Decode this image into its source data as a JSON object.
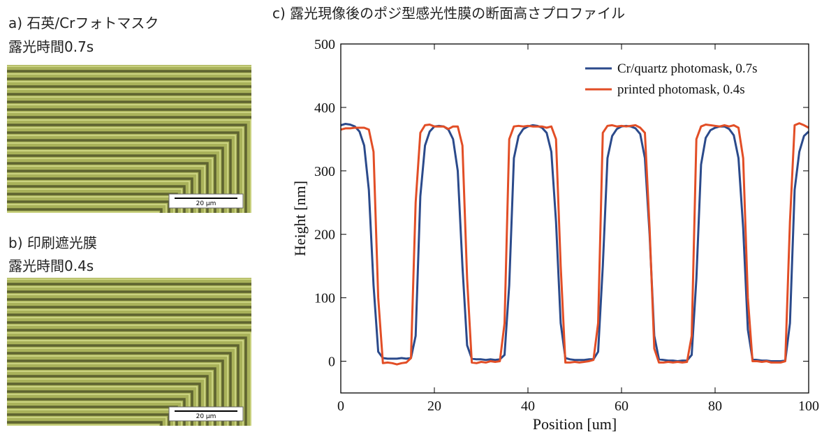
{
  "panels": [
    {
      "label": "a) 石英/Crフォトマスク",
      "caption": "露光時間0.7s",
      "scale_bar": "20 µm"
    },
    {
      "label": "b) 印刷遮光膜",
      "caption": "露光時間0.4s",
      "scale_bar": "20 µm"
    }
  ],
  "chart_data": {
    "type": "line",
    "title": "c) 露光現像後のポジ型感光性膜の断面高さプロファイル",
    "xlabel": "Position [um]",
    "ylabel": "Height [nm]",
    "xlim": [
      0,
      100
    ],
    "ylim": [
      -50,
      500
    ],
    "xticks": [
      0,
      20,
      40,
      60,
      80,
      100
    ],
    "yticks": [
      0,
      100,
      200,
      300,
      400,
      500
    ],
    "legend": "upper right",
    "x": [
      0,
      1,
      2,
      3,
      4,
      5,
      6,
      7,
      8,
      9,
      10,
      11,
      12,
      13,
      14,
      15,
      16,
      17,
      18,
      19,
      20,
      21,
      22,
      23,
      24,
      25,
      26,
      27,
      28,
      29,
      30,
      31,
      32,
      33,
      34,
      35,
      36,
      37,
      38,
      39,
      40,
      41,
      42,
      43,
      44,
      45,
      46,
      47,
      48,
      49,
      50,
      51,
      52,
      53,
      54,
      55,
      56,
      57,
      58,
      59,
      60,
      61,
      62,
      63,
      64,
      65,
      66,
      67,
      68,
      69,
      70,
      71,
      72,
      73,
      74,
      75,
      76,
      77,
      78,
      79,
      80,
      81,
      82,
      83,
      84,
      85,
      86,
      87,
      88,
      89,
      90,
      91,
      92,
      93,
      94,
      95,
      96,
      97,
      98,
      99,
      100
    ],
    "series": [
      {
        "name": "Cr/quartz photomask, 0.7s",
        "color": "#2b4a8b",
        "values": [
          372,
          374,
          373,
          370,
          362,
          340,
          270,
          120,
          15,
          5,
          4,
          4,
          4,
          5,
          4,
          5,
          40,
          260,
          340,
          362,
          370,
          371,
          370,
          365,
          350,
          300,
          150,
          25,
          4,
          3,
          3,
          2,
          3,
          2,
          3,
          10,
          120,
          320,
          355,
          366,
          370,
          372,
          371,
          368,
          360,
          330,
          220,
          60,
          5,
          3,
          2,
          2,
          2,
          3,
          3,
          15,
          150,
          320,
          355,
          366,
          370,
          371,
          370,
          367,
          358,
          320,
          200,
          40,
          3,
          2,
          1,
          1,
          0,
          1,
          1,
          10,
          130,
          310,
          352,
          364,
          368,
          370,
          370,
          366,
          356,
          320,
          210,
          50,
          3,
          2,
          1,
          1,
          0,
          0,
          0,
          1,
          60,
          270,
          330,
          355,
          362
        ]
      },
      {
        "name": "printed photomask, 0.4s",
        "color": "#e24e26",
        "values": [
          365,
          367,
          367,
          368,
          368,
          368,
          365,
          330,
          100,
          -3,
          -2,
          -3,
          -5,
          -3,
          -2,
          5,
          250,
          360,
          372,
          373,
          370,
          370,
          370,
          366,
          370,
          370,
          340,
          130,
          -2,
          -3,
          -1,
          -2,
          0,
          -1,
          0,
          60,
          350,
          370,
          371,
          370,
          371,
          370,
          370,
          370,
          368,
          370,
          350,
          150,
          -2,
          -2,
          -1,
          -2,
          -1,
          0,
          2,
          60,
          360,
          371,
          372,
          370,
          371,
          370,
          371,
          372,
          368,
          360,
          210,
          20,
          -2,
          -2,
          -1,
          -2,
          -1,
          -2,
          -1,
          40,
          350,
          370,
          373,
          372,
          371,
          370,
          372,
          370,
          372,
          368,
          320,
          100,
          0,
          0,
          -1,
          0,
          -2,
          -2,
          -2,
          0,
          220,
          372,
          375,
          372,
          368
        ]
      }
    ]
  }
}
